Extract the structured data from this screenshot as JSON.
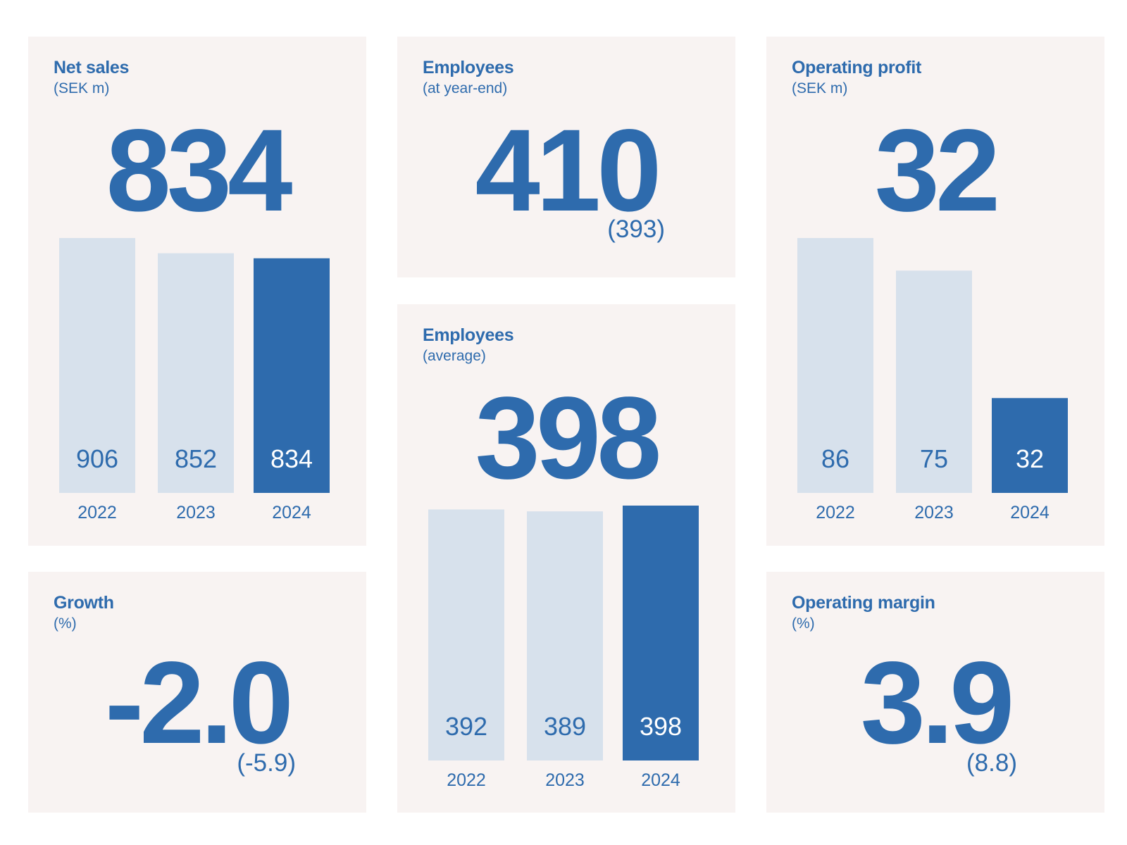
{
  "colors": {
    "accent": "#2e6bad",
    "muted_bar": "#d7e1ec",
    "card_bg": "#f8f3f2"
  },
  "net_sales": {
    "title": "Net sales",
    "subtitle": "(SEK m)",
    "value": "834"
  },
  "employees_year_end": {
    "title": "Employees",
    "subtitle": "(at year-end)",
    "value": "410",
    "previous": "(393)"
  },
  "employees_average": {
    "title": "Employees",
    "subtitle": "(average)",
    "value": "398"
  },
  "operating_profit": {
    "title": "Operating profit",
    "subtitle": "(SEK m)",
    "value": "32"
  },
  "growth": {
    "title": "Growth",
    "subtitle": "(%)",
    "value": "-2.0",
    "previous": "(-5.9)"
  },
  "operating_margin": {
    "title": "Operating margin",
    "subtitle": "(%)",
    "value": "3.9",
    "previous": "(8.8)"
  },
  "chart_data": [
    {
      "type": "bar",
      "title": "Net sales",
      "categories": [
        "2022",
        "2023",
        "2024"
      ],
      "values": [
        906,
        852,
        834
      ],
      "data_labels": [
        "906",
        "852",
        "834"
      ],
      "highlight_index": 2,
      "grid": false
    },
    {
      "type": "bar",
      "title": "Employees",
      "categories": [
        "2022",
        "2023",
        "2024"
      ],
      "values": [
        392,
        389,
        398
      ],
      "data_labels": [
        "392",
        "389",
        "398"
      ],
      "highlight_index": 2,
      "grid": false
    },
    {
      "type": "bar",
      "title": "Operating profit",
      "categories": [
        "2022",
        "2023",
        "2024"
      ],
      "values": [
        86,
        75,
        32
      ],
      "data_labels": [
        "86",
        "75",
        "32"
      ],
      "highlight_index": 2,
      "grid": false
    }
  ]
}
